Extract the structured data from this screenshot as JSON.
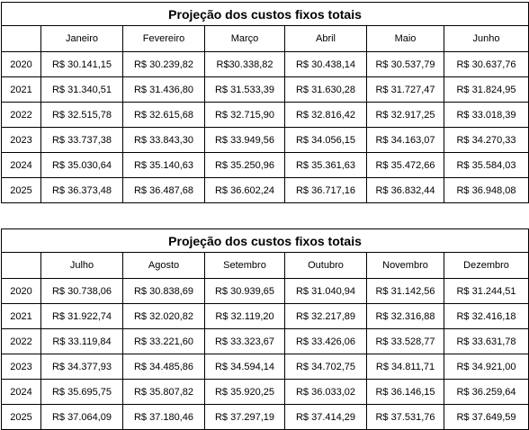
{
  "tables": [
    {
      "title": "Projeção dos custos fixos totais",
      "months": [
        "Janeiro",
        "Fevereiro",
        "Março",
        "Abril",
        "Maio",
        "Junho"
      ],
      "rows": [
        {
          "year": "2020",
          "values": [
            "R$ 30.141,15",
            "R$ 30.239,82",
            "R$30.338,82",
            "R$ 30.438,14",
            "R$ 30.537,79",
            "R$ 30.637,76"
          ]
        },
        {
          "year": "2021",
          "values": [
            "R$ 31.340,51",
            "R$ 31.436,80",
            "R$ 31.533,39",
            "R$ 31.630,28",
            "R$ 31.727,47",
            "R$ 31.824,95"
          ]
        },
        {
          "year": "2022",
          "values": [
            "R$ 32.515,78",
            "R$ 32.615,68",
            "R$ 32.715,90",
            "R$ 32.816,42",
            "R$ 32.917,25",
            "R$ 33.018,39"
          ]
        },
        {
          "year": "2023",
          "values": [
            "R$ 33.737,38",
            "R$ 33.843,30",
            "R$ 33.949,56",
            "R$ 34.056,15",
            "R$ 34.163,07",
            "R$ 34.270,33"
          ]
        },
        {
          "year": "2024",
          "values": [
            "R$ 35.030,64",
            "R$ 35.140,63",
            "R$ 35.250,96",
            "R$ 35.361,63",
            "R$ 35.472,66",
            "R$ 35.584,03"
          ]
        },
        {
          "year": "2025",
          "values": [
            "R$ 36.373,48",
            "R$ 36.487,68",
            "R$ 36.602,24",
            "R$ 36.717,16",
            "R$ 36.832,44",
            "R$ 36.948,08"
          ]
        }
      ]
    },
    {
      "title": "Projeção dos custos fixos totais",
      "months": [
        "Julho",
        "Agosto",
        "Setembro",
        "Outubro",
        "Novembro",
        "Dezembro"
      ],
      "rows": [
        {
          "year": "2020",
          "values": [
            "R$ 30.738,06",
            "R$ 30.838,69",
            "R$ 30.939,65",
            "R$ 31.040,94",
            "R$ 31.142,56",
            "R$ 31.244,51"
          ]
        },
        {
          "year": "2021",
          "values": [
            "R$ 31.922,74",
            "R$ 32.020,82",
            "R$ 32.119,20",
            "R$ 32.217,89",
            "R$ 32.316,88",
            "R$ 32.416,18"
          ]
        },
        {
          "year": "2022",
          "values": [
            "R$ 33.119,84",
            "R$ 33.221,60",
            "R$ 33.323,67",
            "R$ 33.426,06",
            "R$ 33.528,77",
            "R$ 33.631,78"
          ]
        },
        {
          "year": "2023",
          "values": [
            "R$ 34.377,93",
            "R$ 34.485,86",
            "R$ 34.594,14",
            "R$ 34.702,75",
            "R$ 34.811,71",
            "R$ 34.921,00"
          ]
        },
        {
          "year": "2024",
          "values": [
            "R$ 35.695,75",
            "R$ 35.807,82",
            "R$ 35.920,25",
            "R$ 36.033,02",
            "R$ 36.146,15",
            "R$ 36.259,64"
          ]
        },
        {
          "year": "2025",
          "values": [
            "R$ 37.064,09",
            "R$ 37.180,46",
            "R$ 37.297,19",
            "R$ 37.414,29",
            "R$ 37.531,76",
            "R$ 37.649,59"
          ]
        }
      ]
    }
  ]
}
